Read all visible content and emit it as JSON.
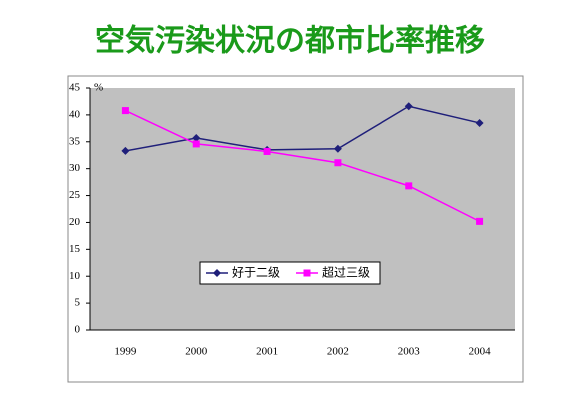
{
  "chart_data": {
    "type": "line",
    "title": "空気汚染状況の都市比率推移",
    "y_unit": "%",
    "categories": [
      "1999",
      "2000",
      "2001",
      "2002",
      "2003",
      "2004"
    ],
    "series": [
      {
        "name": "好于二级",
        "color": "#1f1f7a",
        "marker": "diamond",
        "values": [
          33.3,
          35.7,
          33.5,
          33.7,
          41.6,
          38.5
        ]
      },
      {
        "name": "超过三级",
        "color": "#ff00ff",
        "marker": "square",
        "values": [
          40.8,
          34.6,
          33.2,
          31.1,
          26.8,
          20.2
        ]
      }
    ],
    "ylim": [
      0,
      45
    ],
    "yticks": [
      0,
      5,
      10,
      15,
      20,
      25,
      30,
      35,
      40,
      45
    ],
    "grid": false
  }
}
